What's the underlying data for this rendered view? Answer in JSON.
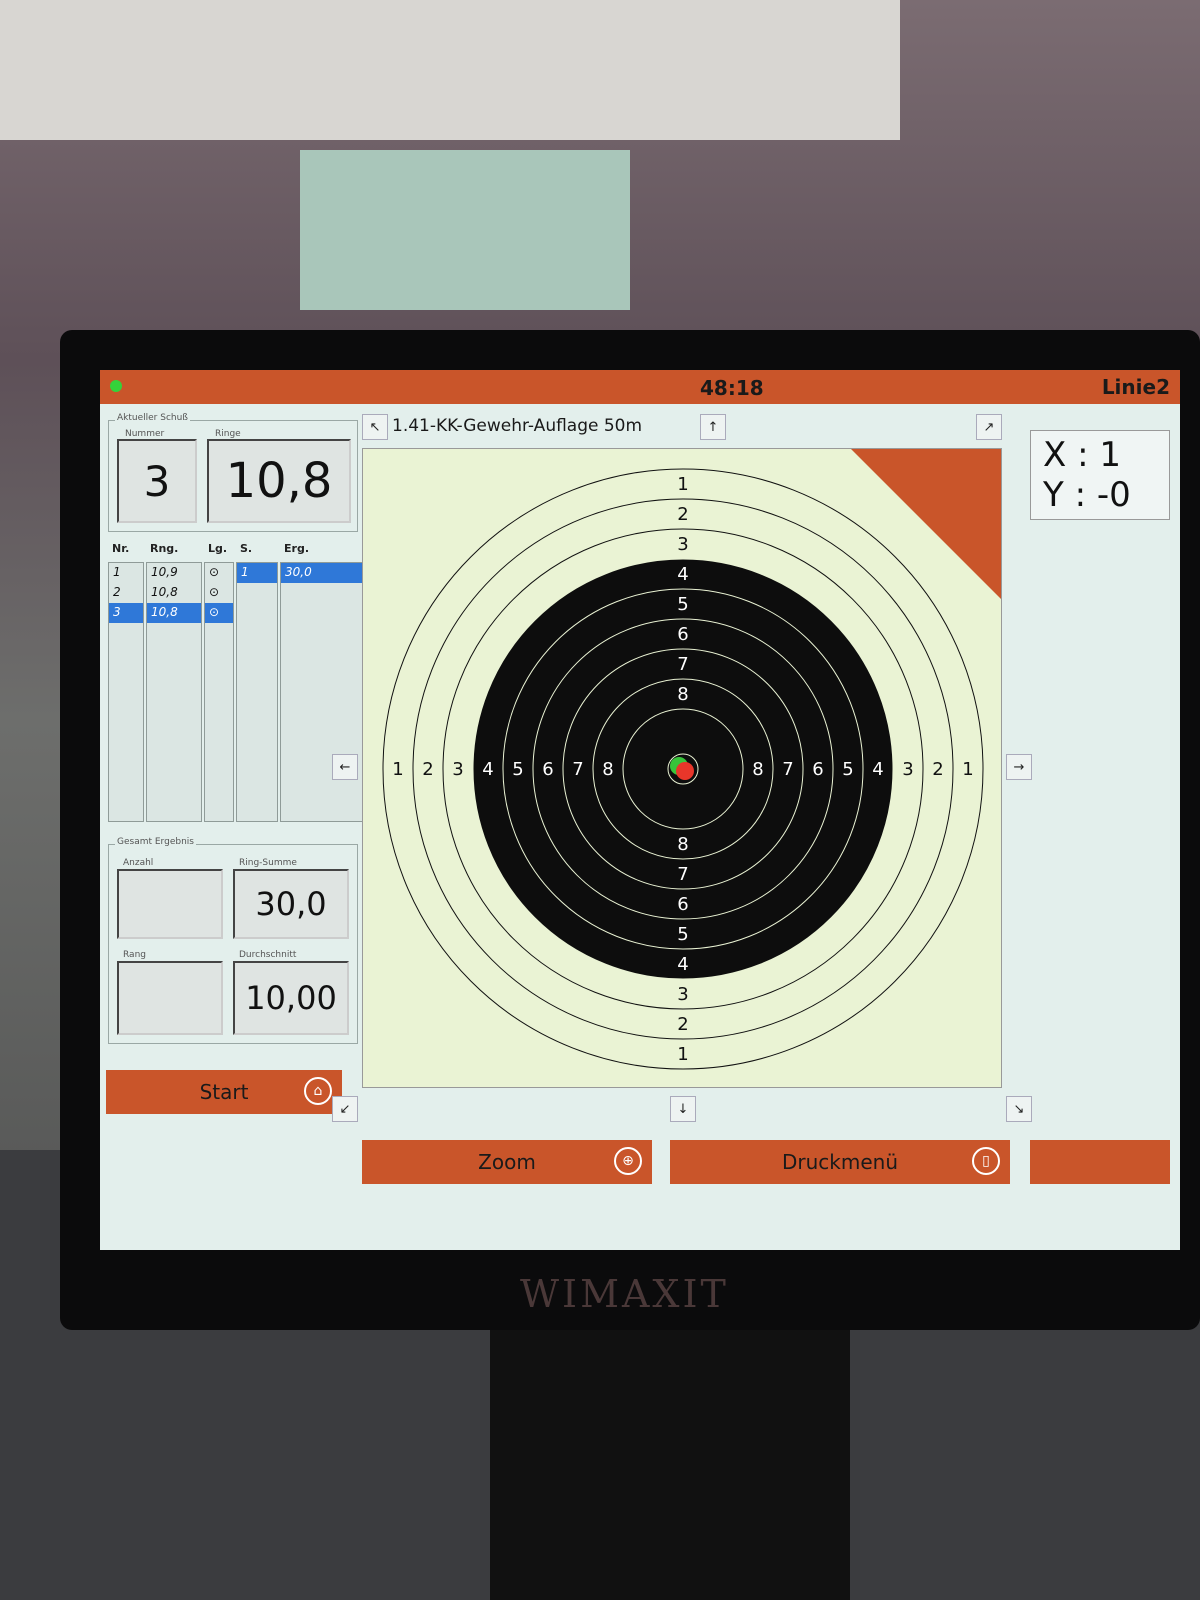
{
  "topbar": {
    "timer": "48:18",
    "lane": "Linie2",
    "status_color": "#34d23a"
  },
  "current_shot": {
    "group_label": "Aktueller Schuß",
    "number_label": "Nummer",
    "number": "3",
    "rings_label": "Ringe",
    "rings": "10,8"
  },
  "shots_table": {
    "headers": [
      "Nr.",
      "Rng.",
      "Lg.",
      "S.",
      "Erg."
    ],
    "rows": [
      {
        "nr": "1",
        "rng": "10,9",
        "lg": "⊙"
      },
      {
        "nr": "2",
        "rng": "10,8",
        "lg": "⊙"
      },
      {
        "nr": "3",
        "rng": "10,8",
        "lg": "⊙",
        "selected": true
      }
    ],
    "series": [
      {
        "s": "1",
        "erg": "30,0"
      }
    ]
  },
  "total": {
    "group_label": "Gesamt Ergebnis",
    "count_label": "Anzahl",
    "count": "",
    "sum_label": "Ring-Summe",
    "sum": "30,0",
    "rank_label": "Rang",
    "rank": "",
    "avg_label": "Durchschnitt",
    "avg": "10,00"
  },
  "target": {
    "discipline": "1.41-KK-Gewehr-Auflage 50m",
    "ring_labels": [
      "1",
      "2",
      "3",
      "4",
      "5",
      "6",
      "7",
      "8"
    ],
    "shots": [
      {
        "color": "#38c43a"
      },
      {
        "color": "#e8362a"
      }
    ],
    "accent": "#c9552a"
  },
  "coords": {
    "x": "X : 1",
    "y": "Y : -0"
  },
  "buttons": {
    "start": "Start",
    "zoom": "Zoom",
    "print": "Druckmenü"
  },
  "arrows": {
    "up": "↑",
    "down": "↓",
    "left": "←",
    "right": "→",
    "nw": "↖",
    "ne": "↗",
    "sw": "↙",
    "se": "↘"
  },
  "brand": "WIMAXIT"
}
